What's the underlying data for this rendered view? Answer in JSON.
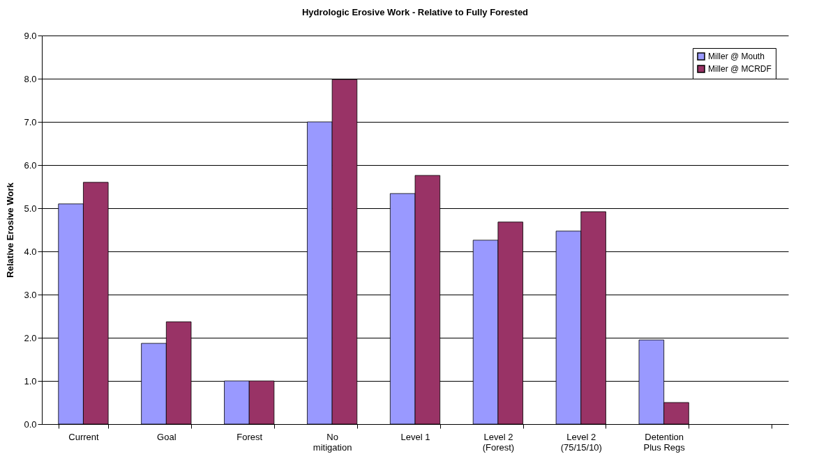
{
  "chart_data": {
    "type": "bar",
    "title": "Hydrologic Erosive Work - Relative to Fully Forested",
    "ylabel": "Relative Erosive Work",
    "categories": [
      "Current",
      "Goal",
      "Forest",
      "No\nmitigation",
      "Level 1",
      "Level 2\n(Forest)",
      "Level 2\n(75/15/10)",
      "Detention\nPlus Regs",
      null
    ],
    "series": [
      {
        "name": "Miller @ Mouth",
        "color": "#9999ff",
        "values": [
          5.1,
          1.87,
          1.0,
          7.0,
          5.34,
          4.26,
          4.47,
          1.95,
          null
        ]
      },
      {
        "name": "Miller @ MCRDF",
        "color": "#993366",
        "values": [
          5.6,
          2.37,
          1.0,
          7.98,
          5.76,
          4.68,
          4.92,
          0.5,
          null
        ]
      }
    ],
    "ylim": [
      0,
      9
    ],
    "yticks": [
      {
        "value": 0,
        "label": "0.0"
      },
      {
        "value": 1,
        "label": "1.0"
      },
      {
        "value": 2,
        "label": "2.0"
      },
      {
        "value": 3,
        "label": "3.0"
      },
      {
        "value": 4,
        "label": "4.0"
      },
      {
        "value": 5,
        "label": "5.0"
      },
      {
        "value": 6,
        "label": "6.0"
      },
      {
        "value": 7,
        "label": "7.0"
      },
      {
        "value": 8,
        "label": "8.0"
      },
      {
        "value": 9,
        "label": "9.0"
      }
    ],
    "grid": "y",
    "legend": "top right"
  }
}
